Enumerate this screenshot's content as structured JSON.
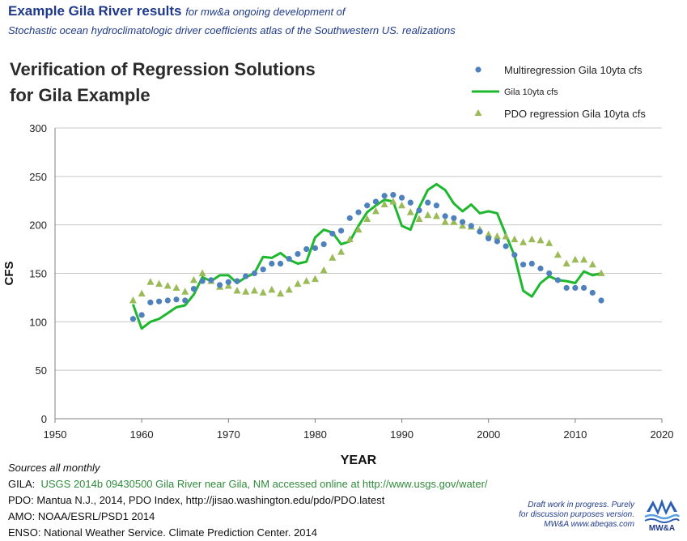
{
  "header": {
    "title": "Example Gila River results",
    "subtitle": "for mw&a ongoing development of",
    "line2": "Stochastic ocean hydroclimatologic driver coefficients atlas of the Southwestern US. realizations"
  },
  "chart_title": {
    "line1": "Verification of Regression Solutions",
    "line2": "for Gila Example"
  },
  "colors": {
    "multi": "#4f81bd",
    "gila": "#1db82e",
    "pdo": "#9bbb59",
    "grid": "#c8c8c8",
    "axis": "#7f7f7f",
    "header": "#1f3a8a",
    "source_green": "#2f8c3a"
  },
  "chart_data": {
    "type": "line",
    "xlabel": "YEAR",
    "ylabel": "CFS",
    "xlim": [
      1950,
      2020
    ],
    "ylim": [
      0,
      300
    ],
    "xticks": [
      1950,
      1960,
      1970,
      1980,
      1990,
      2000,
      2010,
      2020
    ],
    "yticks": [
      0,
      50,
      100,
      150,
      200,
      250,
      300
    ],
    "grid": "horizontal",
    "legend_position": "top-right",
    "series": [
      {
        "name": "Multiregression Gila 10yta cfs",
        "style": "dot",
        "x": [
          1959,
          1960,
          1961,
          1962,
          1963,
          1964,
          1965,
          1966,
          1967,
          1968,
          1969,
          1970,
          1971,
          1972,
          1973,
          1974,
          1975,
          1976,
          1977,
          1978,
          1979,
          1980,
          1981,
          1982,
          1983,
          1984,
          1985,
          1986,
          1987,
          1988,
          1989,
          1990,
          1991,
          1992,
          1993,
          1994,
          1995,
          1996,
          1997,
          1998,
          1999,
          2000,
          2001,
          2002,
          2003,
          2004,
          2005,
          2006,
          2007,
          2008,
          2009,
          2010,
          2011,
          2012,
          2013
        ],
        "y": [
          103,
          107,
          120,
          121,
          122,
          123,
          122,
          134,
          142,
          143,
          138,
          141,
          142,
          147,
          150,
          154,
          160,
          160,
          165,
          170,
          175,
          176,
          180,
          191,
          194,
          207,
          213,
          220,
          224,
          230,
          231,
          228,
          223,
          215,
          223,
          220,
          209,
          207,
          203,
          199,
          193,
          186,
          183,
          178,
          169,
          159,
          160,
          155,
          150,
          143,
          135,
          135,
          135,
          130,
          122
        ]
      },
      {
        "name": "Gila 10yta cfs",
        "style": "line",
        "x": [
          1959,
          1960,
          1961,
          1962,
          1963,
          1964,
          1965,
          1966,
          1967,
          1968,
          1969,
          1970,
          1971,
          1972,
          1973,
          1974,
          1975,
          1976,
          1977,
          1978,
          1979,
          1980,
          1981,
          1982,
          1983,
          1984,
          1985,
          1986,
          1987,
          1988,
          1989,
          1990,
          1991,
          1992,
          1993,
          1994,
          1995,
          1996,
          1997,
          1998,
          1999,
          2000,
          2001,
          2002,
          2003,
          2004,
          2005,
          2006,
          2007,
          2008,
          2009,
          2010,
          2011,
          2012,
          2013
        ],
        "y": [
          118,
          93,
          100,
          103,
          109,
          115,
          117,
          128,
          146,
          142,
          148,
          148,
          140,
          146,
          150,
          167,
          166,
          171,
          164,
          160,
          162,
          187,
          195,
          192,
          180,
          183,
          199,
          213,
          220,
          226,
          224,
          199,
          195,
          218,
          236,
          242,
          236,
          222,
          214,
          221,
          212,
          214,
          212,
          190,
          168,
          132,
          126,
          140,
          147,
          143,
          142,
          140,
          152,
          148,
          150
        ]
      },
      {
        "name": "PDO regression Gila 10yta cfs",
        "style": "triangle",
        "x": [
          1959,
          1960,
          1961,
          1962,
          1963,
          1964,
          1965,
          1966,
          1967,
          1968,
          1969,
          1970,
          1971,
          1972,
          1973,
          1974,
          1975,
          1976,
          1977,
          1978,
          1979,
          1980,
          1981,
          1982,
          1983,
          1984,
          1985,
          1986,
          1987,
          1988,
          1989,
          1990,
          1991,
          1992,
          1993,
          1994,
          1995,
          1996,
          1997,
          1998,
          1999,
          2000,
          2001,
          2002,
          2003,
          2004,
          2005,
          2006,
          2007,
          2008,
          2009,
          2010,
          2011,
          2012,
          2013
        ],
        "y": [
          122,
          129,
          141,
          139,
          137,
          135,
          131,
          143,
          150,
          142,
          136,
          137,
          132,
          131,
          132,
          130,
          133,
          129,
          133,
          139,
          142,
          144,
          153,
          166,
          172,
          185,
          195,
          206,
          214,
          221,
          224,
          220,
          213,
          206,
          210,
          209,
          203,
          203,
          199,
          198,
          195,
          190,
          188,
          188,
          185,
          182,
          185,
          184,
          181,
          169,
          160,
          164,
          164,
          159,
          150
        ]
      }
    ]
  },
  "sources": {
    "heading": "Sources  all monthly",
    "gila_label": " GILA:",
    "gila_text": "USGS 2014b 09430500 Gila River near Gila, NM accessed online at http://www.usgs.gov/water/",
    "pdo": "PDO:  Mantua N.J., 2014, PDO Index, http://jisao.washington.edu/pdo/PDO.latest",
    "amo": "AMO: NOAA/ESRL/PSD1 2014",
    "enso": "ENSO: National Weather Service. Climate Prediction Center. 2014"
  },
  "note": {
    "line1": "Draft work in progress.  Purely",
    "line2": "for discussion purposes version.",
    "line3": "MW&A www.abeqas.com"
  },
  "logo_text": "MW&A"
}
